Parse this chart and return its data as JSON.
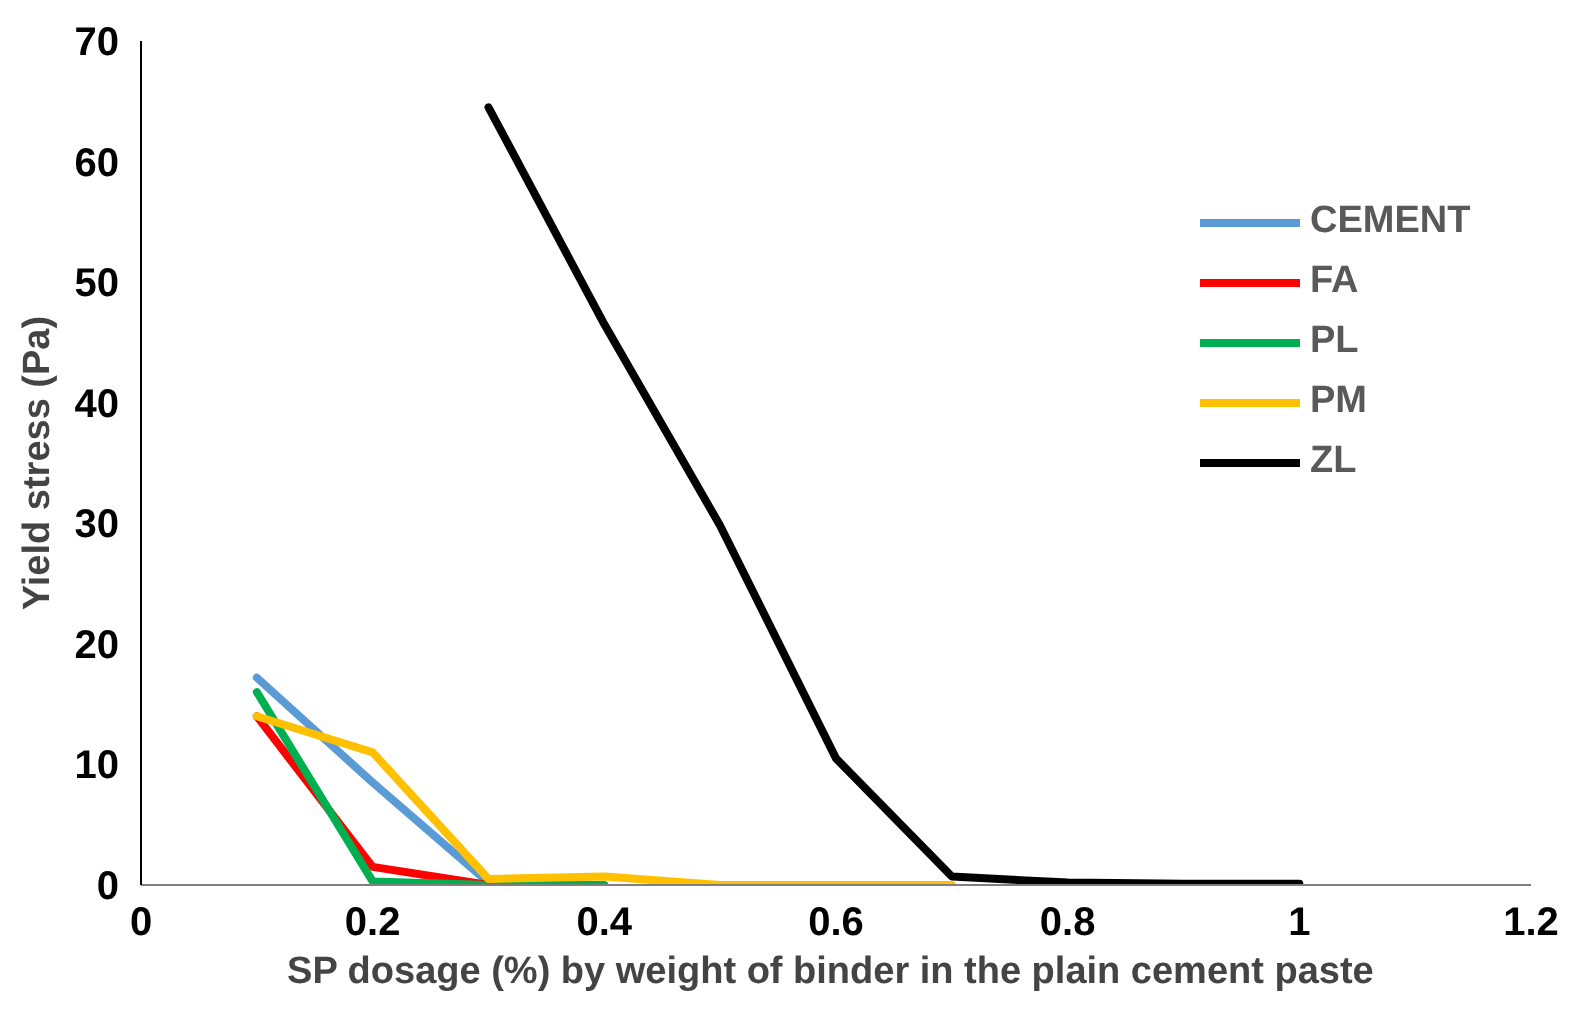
{
  "chart_data": {
    "type": "line",
    "xlabel": "SP dosage (%) by weight of  binder in the plain cement paste",
    "ylabel": "Yield stress (Pa)",
    "x": [
      0.1,
      0.2,
      0.3,
      0.4,
      0.5,
      0.6,
      0.7
    ],
    "series": [
      {
        "name": "CEMENT",
        "color": "#5b9bd5",
        "values": [
          17.2,
          8.5,
          0.2,
          null,
          null,
          null,
          null
        ]
      },
      {
        "name": "FA",
        "color": "#ff0000",
        "values": [
          14,
          1.5,
          0,
          null,
          null,
          null,
          null
        ]
      },
      {
        "name": "PL",
        "color": "#00b050",
        "values": [
          16,
          0.3,
          0,
          0,
          null,
          null,
          null
        ]
      },
      {
        "name": "PM",
        "color": "#ffc000",
        "values": [
          14,
          11,
          0.5,
          0.7,
          0,
          0,
          0
        ]
      },
      {
        "name": "ZL",
        "color": "#000000",
        "x": [
          0.3,
          0.4,
          0.5,
          0.6,
          0.7,
          0.8,
          0.9,
          1.0
        ],
        "values": [
          64.5,
          46.5,
          29.8,
          10.5,
          0.7,
          0.2,
          0.1,
          0.1
        ]
      }
    ],
    "xlim": [
      0,
      1.2
    ],
    "xticks": [
      0,
      0.2,
      0.4,
      0.6,
      0.8,
      1,
      1.2
    ],
    "ylim": [
      0,
      70
    ],
    "yticks": [
      0,
      10,
      20,
      30,
      40,
      50,
      60,
      70
    ],
    "grid": false,
    "legend": "right",
    "marker": "none",
    "line_style": "solid"
  }
}
